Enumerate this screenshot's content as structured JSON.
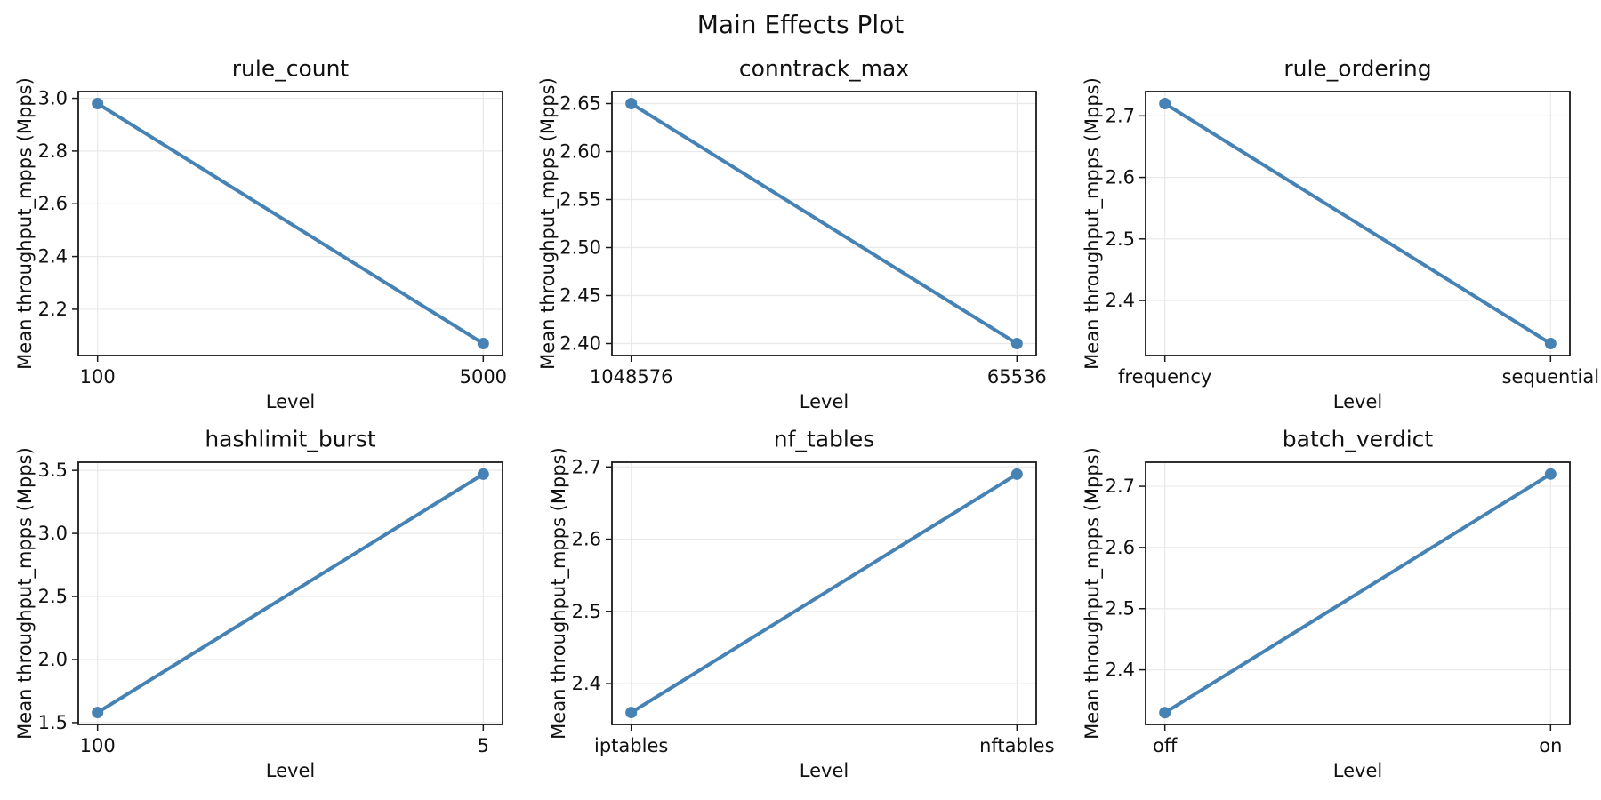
{
  "figure": {
    "title": "Main Effects Plot",
    "background_color": "#ffffff",
    "accent_color": "#4682B4",
    "grid_color": "#e9e9e9",
    "spine_color": "#1a1a1a",
    "text_color": "#111111"
  },
  "chart_data": [
    {
      "type": "line",
      "title": "rule_count",
      "xlabel": "Level",
      "ylabel": "Mean throughput_mpps (Mpps)",
      "categories": [
        "100",
        "5000"
      ],
      "values": [
        2.98,
        2.07
      ],
      "yticks": [
        2.2,
        2.4,
        2.6,
        2.8,
        3.0
      ],
      "ytick_labels": [
        "2.2",
        "2.4",
        "2.6",
        "2.8",
        "3.0"
      ],
      "ylim": [
        2.0245,
        3.0255
      ],
      "grid": true,
      "legend": "none"
    },
    {
      "type": "line",
      "title": "conntrack_max",
      "xlabel": "Level",
      "ylabel": "Mean throughput_mpps (Mpps)",
      "categories": [
        "1048576",
        "65536"
      ],
      "values": [
        2.65,
        2.4
      ],
      "yticks": [
        2.4,
        2.45,
        2.5,
        2.55,
        2.6,
        2.65
      ],
      "ytick_labels": [
        "2.40",
        "2.45",
        "2.50",
        "2.55",
        "2.60",
        "2.65"
      ],
      "ylim": [
        2.3875,
        2.6625
      ],
      "grid": true,
      "legend": "none"
    },
    {
      "type": "line",
      "title": "rule_ordering",
      "xlabel": "Level",
      "ylabel": "Mean throughput_mpps (Mpps)",
      "categories": [
        "frequency",
        "sequential"
      ],
      "values": [
        2.72,
        2.33
      ],
      "yticks": [
        2.4,
        2.5,
        2.6,
        2.7
      ],
      "ytick_labels": [
        "2.4",
        "2.5",
        "2.6",
        "2.7"
      ],
      "ylim": [
        2.3105,
        2.7395
      ],
      "grid": true,
      "legend": "none"
    },
    {
      "type": "line",
      "title": "hashlimit_burst",
      "xlabel": "Level",
      "ylabel": "Mean throughput_mpps (Mpps)",
      "categories": [
        "100",
        "5"
      ],
      "values": [
        1.58,
        3.47
      ],
      "yticks": [
        1.5,
        2.0,
        2.5,
        3.0,
        3.5
      ],
      "ytick_labels": [
        "1.5",
        "2.0",
        "2.5",
        "3.0",
        "3.5"
      ],
      "ylim": [
        1.4855,
        3.5645
      ],
      "grid": true,
      "legend": "none"
    },
    {
      "type": "line",
      "title": "nf_tables",
      "xlabel": "Level",
      "ylabel": "Mean throughput_mpps (Mpps)",
      "categories": [
        "iptables",
        "nftables"
      ],
      "values": [
        2.36,
        2.69
      ],
      "yticks": [
        2.4,
        2.5,
        2.6,
        2.7
      ],
      "ytick_labels": [
        "2.4",
        "2.5",
        "2.6",
        "2.7"
      ],
      "ylim": [
        2.3435,
        2.7065
      ],
      "grid": true,
      "legend": "none"
    },
    {
      "type": "line",
      "title": "batch_verdict",
      "xlabel": "Level",
      "ylabel": "Mean throughput_mpps (Mpps)",
      "categories": [
        "off",
        "on"
      ],
      "values": [
        2.33,
        2.72
      ],
      "yticks": [
        2.4,
        2.5,
        2.6,
        2.7
      ],
      "ytick_labels": [
        "2.4",
        "2.5",
        "2.6",
        "2.7"
      ],
      "ylim": [
        2.3108,
        2.7393
      ],
      "grid": true,
      "legend": "none"
    }
  ]
}
